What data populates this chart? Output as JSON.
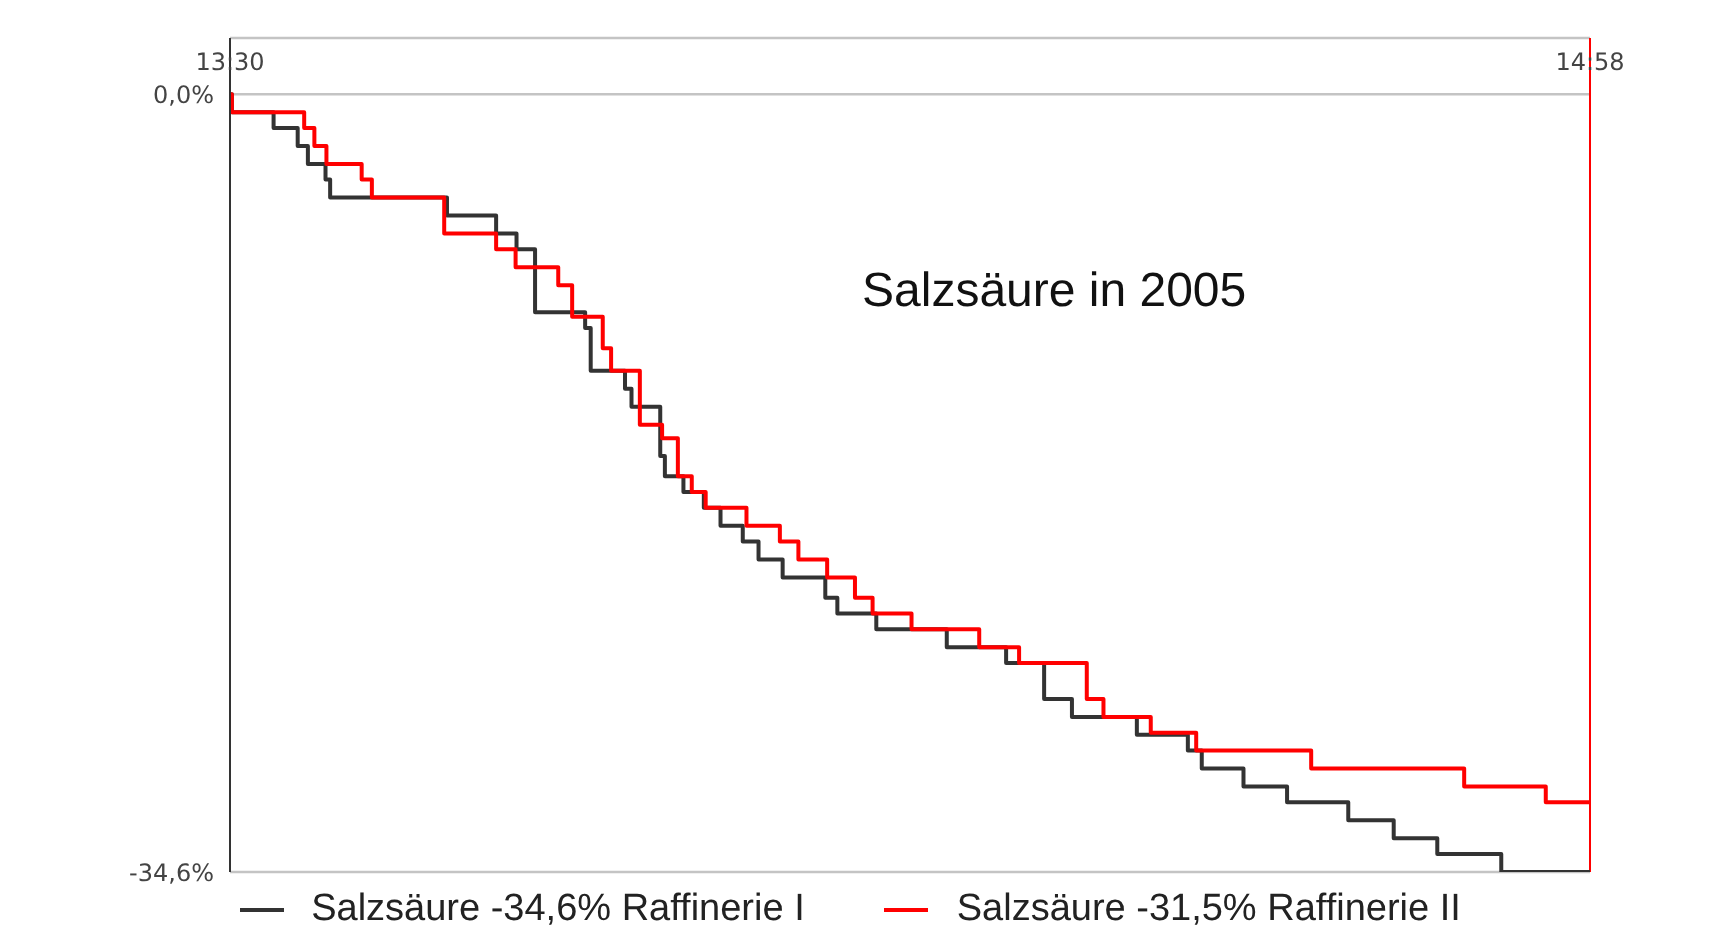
{
  "chart_data": {
    "type": "step",
    "annotations": [
      "Salzsäure in 2005"
    ],
    "xlim": [
      13.5,
      14.9667
    ],
    "xticks": [
      {
        "value": 13.5,
        "label": "13:30"
      },
      {
        "value": 14.9667,
        "label": "14:58"
      }
    ],
    "ylim": [
      -34.6,
      2.5
    ],
    "yticks": [
      {
        "value": 0,
        "label": "0,0%"
      },
      {
        "value": -34.6,
        "label": "-34,6%"
      }
    ],
    "grid": "y",
    "legend": "bottom",
    "marker": "none",
    "line_style": "solid",
    "ref_lines": [
      {
        "axis": "x",
        "value": 14.9667,
        "label": null,
        "color": "#ff0000"
      }
    ],
    "series": [
      {
        "name": "Salzsäure  -34,6% Raffinerie I",
        "color": "#333333",
        "x": [
          13.5,
          13.502,
          13.547,
          13.573,
          13.584,
          13.603,
          13.608,
          13.734,
          13.787,
          13.809,
          13.829,
          13.883,
          13.889,
          13.926,
          13.933,
          13.964,
          13.969,
          13.989,
          14.011,
          14.029,
          14.053,
          14.07,
          14.096,
          14.142,
          14.155,
          14.197,
          14.273,
          14.337,
          14.378,
          14.408,
          14.478,
          14.533,
          14.548,
          14.593,
          14.64,
          14.706,
          14.755,
          14.802,
          14.871,
          14.9667
        ],
        "values": [
          0,
          -0.8,
          -1.5,
          -2.3,
          -3.1,
          -3.8,
          -4.6,
          -5.4,
          -6.2,
          -6.9,
          -9.7,
          -10.4,
          -12.3,
          -13.1,
          -13.9,
          -16.1,
          -17,
          -17.7,
          -18.4,
          -19.2,
          -19.9,
          -20.7,
          -21.5,
          -22.4,
          -23.1,
          -23.8,
          -24.6,
          -25.3,
          -26.9,
          -27.7,
          -28.5,
          -29.2,
          -30,
          -30.8,
          -31.5,
          -32.3,
          -33.1,
          -33.8,
          -34.6,
          -34.6
        ]
      },
      {
        "name": "Salzsäure  -31,5% Raffinerie II",
        "color": "#ff0000",
        "x": [
          13.5,
          13.502,
          13.58,
          13.591,
          13.604,
          13.642,
          13.653,
          13.731,
          13.787,
          13.808,
          13.854,
          13.869,
          13.902,
          13.911,
          13.942,
          13.966,
          13.983,
          13.998,
          14.013,
          14.057,
          14.093,
          14.113,
          14.144,
          14.174,
          14.193,
          14.235,
          14.308,
          14.351,
          14.424,
          14.442,
          14.493,
          14.542,
          14.666,
          14.831,
          14.919,
          14.9667
        ],
        "values": [
          0,
          -0.8,
          -1.5,
          -2.3,
          -3.1,
          -3.8,
          -4.6,
          -6.2,
          -6.9,
          -7.7,
          -8.5,
          -9.9,
          -11.3,
          -12.3,
          -14.7,
          -15.3,
          -17,
          -17.7,
          -18.4,
          -19.2,
          -19.9,
          -20.7,
          -21.5,
          -22.4,
          -23.1,
          -23.8,
          -24.6,
          -25.3,
          -26.9,
          -27.7,
          -28.4,
          -29.2,
          -30,
          -30.8,
          -31.5,
          -31.5
        ]
      }
    ]
  }
}
